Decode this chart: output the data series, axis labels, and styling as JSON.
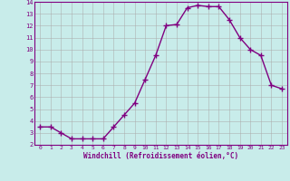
{
  "x": [
    0,
    1,
    2,
    3,
    4,
    5,
    6,
    7,
    8,
    9,
    10,
    11,
    12,
    13,
    14,
    15,
    16,
    17,
    18,
    19,
    20,
    21,
    22,
    23
  ],
  "y": [
    3.5,
    3.5,
    3.0,
    2.5,
    2.5,
    2.5,
    2.5,
    3.5,
    4.5,
    5.5,
    7.5,
    9.5,
    12.0,
    12.1,
    13.5,
    13.7,
    13.6,
    13.6,
    12.5,
    11.0,
    10.0,
    9.5,
    7.0,
    6.7
  ],
  "ylim": [
    2,
    14
  ],
  "xlim": [
    -0.5,
    23.5
  ],
  "yticks": [
    2,
    3,
    4,
    5,
    6,
    7,
    8,
    9,
    10,
    11,
    12,
    13,
    14
  ],
  "xticks": [
    0,
    1,
    2,
    3,
    4,
    5,
    6,
    7,
    8,
    9,
    10,
    11,
    12,
    13,
    14,
    15,
    16,
    17,
    18,
    19,
    20,
    21,
    22,
    23
  ],
  "line_color": "#800080",
  "marker": "+",
  "bg_color": "#c8ecea",
  "grid_color": "#aaaaaa",
  "xlabel": "Windchill (Refroidissement éolien,°C)",
  "tick_label_color": "#800080",
  "axis_label_color": "#800080",
  "spine_color": "#800080",
  "markersize": 4,
  "linewidth": 1.0
}
